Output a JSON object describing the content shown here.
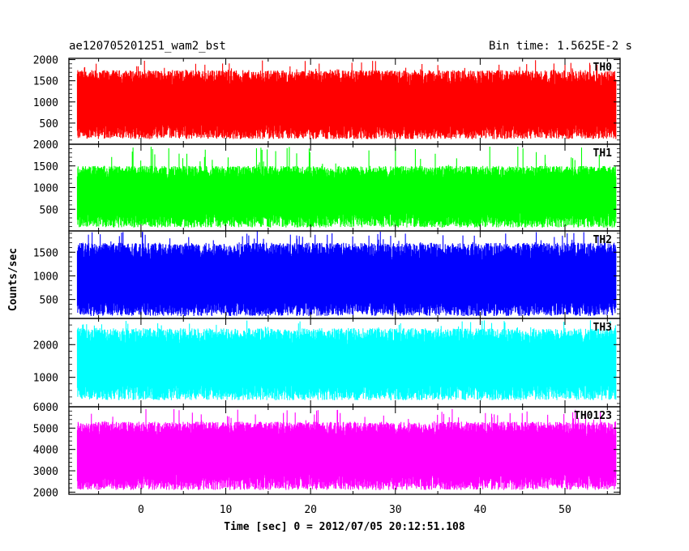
{
  "chart_data": {
    "type": "line",
    "title_left": "ae120705201251_wam2_bst",
    "title_right": "Bin time: 1.5625E-2 s",
    "xlabel": "Time [sec] 0 = 2012/07/05 20:12:51.108",
    "ylabel": "Counts/sec",
    "xlim": [
      -8.5,
      56.5
    ],
    "x_ticks": [
      0,
      10,
      20,
      30,
      40,
      50
    ],
    "x_ticks_labels": [
      "0",
      "10",
      "20",
      "30",
      "40",
      "50"
    ],
    "x_data_range": [
      -7.5,
      56
    ],
    "panels": [
      {
        "name": "TH0",
        "color": "#ff0000",
        "ylim": [
          0,
          2030
        ],
        "y_ticks": [
          500,
          1000,
          1500,
          2000
        ],
        "y_tick_labels": [
          "500",
          "1000",
          "1500",
          "2000"
        ],
        "mean": 900,
        "low_envelope": 120,
        "high_envelope": 1750,
        "max": 2000
      },
      {
        "name": "TH1",
        "color": "#00ff00",
        "ylim": [
          0,
          2000
        ],
        "y_ticks": [
          500,
          1000,
          1500,
          2000
        ],
        "y_tick_labels": [
          "500",
          "1000",
          "1500",
          "2000"
        ],
        "mean": 800,
        "low_envelope": 80,
        "high_envelope": 1500,
        "max": 1950
      },
      {
        "name": "TH2",
        "color": "#0000ff",
        "ylim": [
          100,
          1950
        ],
        "y_ticks": [
          500,
          1000,
          1500
        ],
        "y_tick_labels": [
          "500",
          "1000",
          "1500"
        ],
        "mean": 850,
        "low_envelope": 150,
        "high_envelope": 1700,
        "max": 1950
      },
      {
        "name": "TH3",
        "color": "#00ffff",
        "ylim": [
          100,
          2800
        ],
        "y_ticks": [
          1000,
          2000
        ],
        "y_tick_labels": [
          "1000",
          "2000"
        ],
        "mean": 1350,
        "low_envelope": 300,
        "high_envelope": 2500,
        "max": 2750
      },
      {
        "name": "TH0123",
        "color": "#ff00ff",
        "ylim": [
          1900,
          6000
        ],
        "y_ticks": [
          2000,
          3000,
          4000,
          5000,
          6000
        ],
        "y_tick_labels": [
          "2000",
          "3000",
          "4000",
          "5000",
          "6000"
        ],
        "mean": 3700,
        "low_envelope": 2100,
        "high_envelope": 5300,
        "max": 5900
      }
    ]
  }
}
